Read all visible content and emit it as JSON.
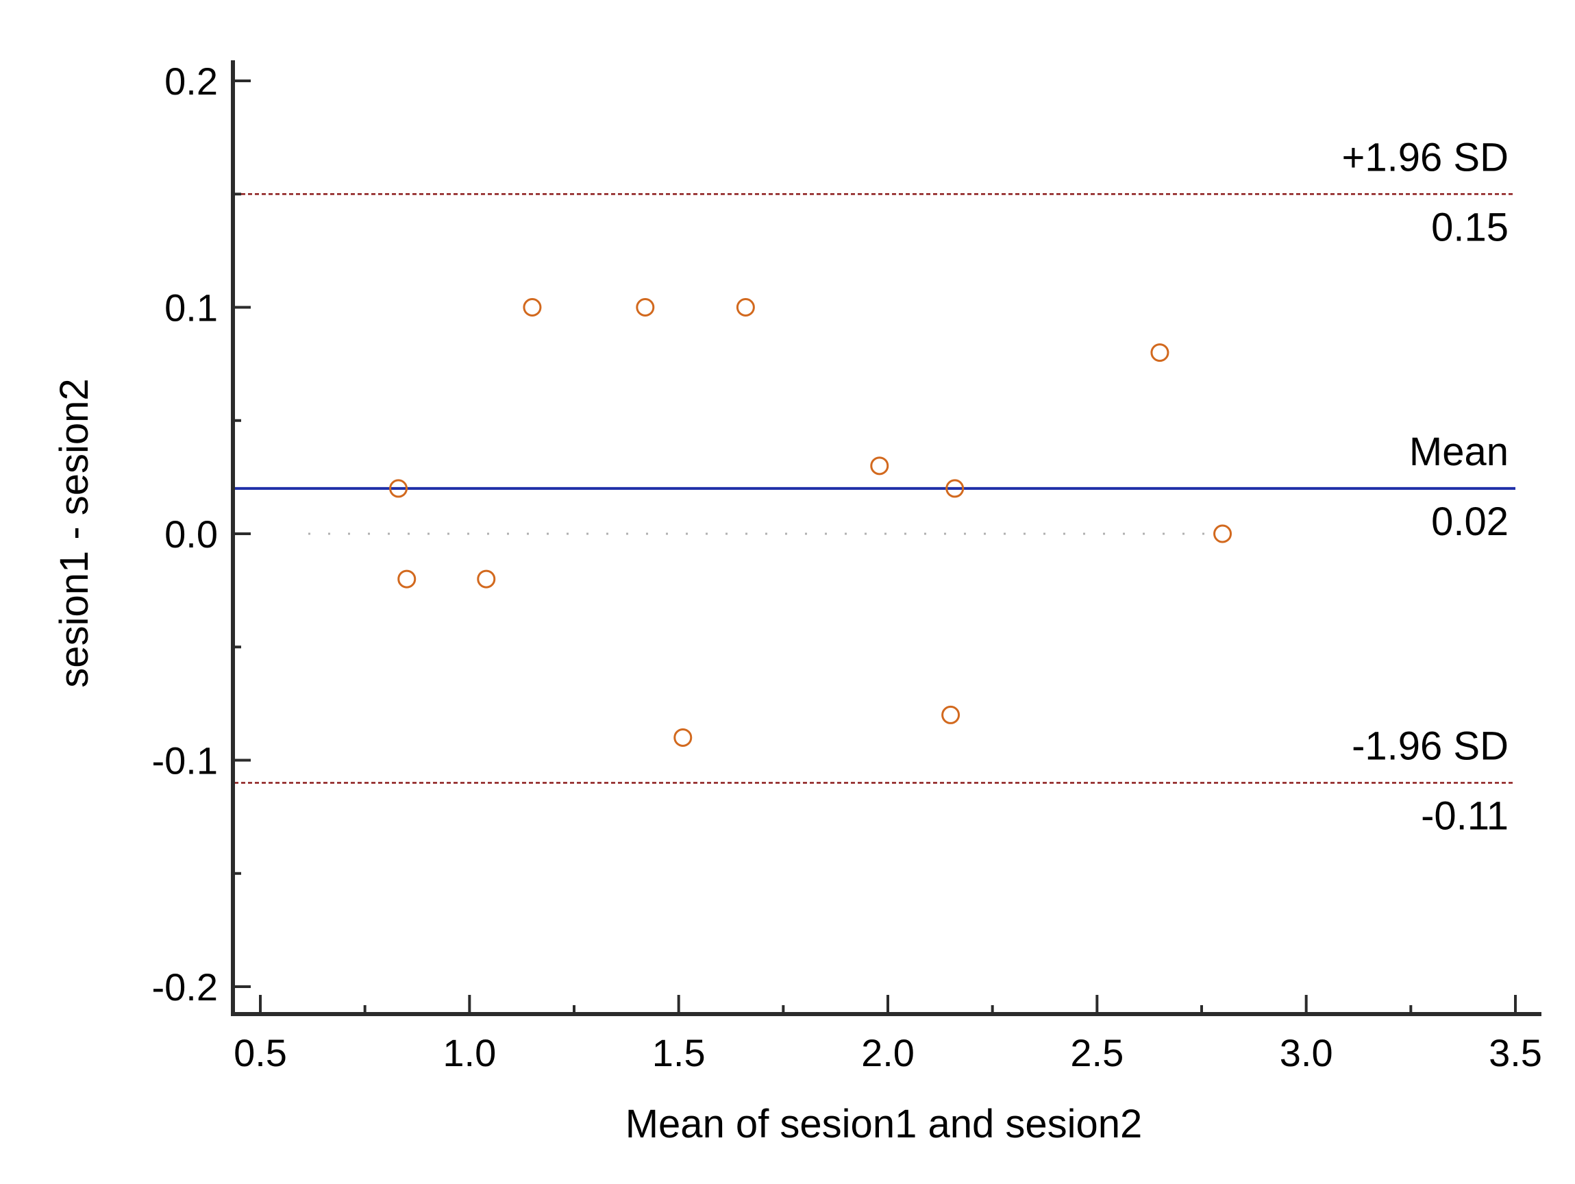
{
  "chart_data": {
    "type": "scatter",
    "subtype": "bland-altman",
    "title": "",
    "xlabel": "Mean of sesion1 and sesion2",
    "ylabel": "sesion1 - sesion2",
    "xlim": [
      0.5,
      3.5
    ],
    "ylim": [
      -0.2,
      0.2
    ],
    "x_ticks": [
      "0.5",
      "1.0",
      "1.5",
      "2.0",
      "2.5",
      "3.0",
      "3.5"
    ],
    "x_tick_values": [
      0.5,
      1.0,
      1.5,
      2.0,
      2.5,
      3.0,
      3.5
    ],
    "y_ticks": [
      "0.2",
      "0.1",
      "0.0",
      "-0.1",
      "-0.2"
    ],
    "y_tick_values": [
      0.2,
      0.1,
      0.0,
      -0.1,
      -0.2
    ],
    "y_minor_tick_values": [
      0.15,
      0.05,
      -0.05,
      -0.15
    ],
    "grid": false,
    "reference_lines": {
      "upper": {
        "name": "+1.96 SD",
        "value": 0.15,
        "value_label": "0.15",
        "style": "dashed",
        "color": "#8b1a1a"
      },
      "mean": {
        "name": "Mean",
        "value": 0.02,
        "value_label": "0.02",
        "style": "solid",
        "color": "#1f2fa8"
      },
      "lower": {
        "name": "-1.96 SD",
        "value": -0.11,
        "value_label": "-0.11",
        "style": "dashed",
        "color": "#8b1a1a"
      },
      "zero": {
        "value": 0.0,
        "style": "dotted",
        "color": "#b0b0b0"
      }
    },
    "series": [
      {
        "name": "differences",
        "marker": "open-circle",
        "color": "#d2691e",
        "points": [
          {
            "x": 0.83,
            "y": 0.02
          },
          {
            "x": 0.85,
            "y": -0.02
          },
          {
            "x": 1.04,
            "y": -0.02
          },
          {
            "x": 1.15,
            "y": 0.1
          },
          {
            "x": 1.42,
            "y": 0.1
          },
          {
            "x": 1.51,
            "y": -0.09
          },
          {
            "x": 1.66,
            "y": 0.1
          },
          {
            "x": 1.98,
            "y": 0.03
          },
          {
            "x": 2.15,
            "y": -0.08
          },
          {
            "x": 2.16,
            "y": 0.02
          },
          {
            "x": 2.65,
            "y": 0.08
          },
          {
            "x": 2.8,
            "y": 0.0
          }
        ]
      }
    ]
  }
}
